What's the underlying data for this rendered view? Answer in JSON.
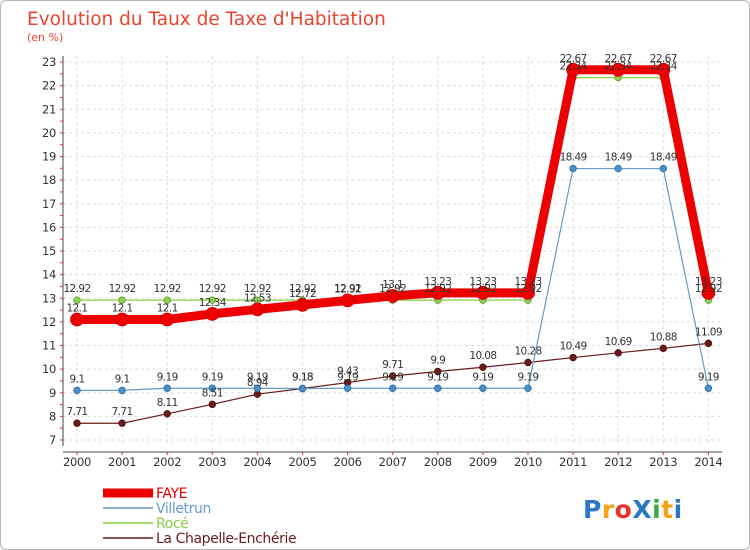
{
  "chart_data": {
    "type": "line",
    "title": "Evolution du Taux de Taxe d'Habitation",
    "subtitle": "(en %)",
    "xlabel": "",
    "ylabel": "(en %)",
    "ylim": [
      7,
      23
    ],
    "yticks": [
      "7",
      "8",
      "9",
      "10",
      "11",
      "12",
      "13",
      "14",
      "15",
      "16",
      "17",
      "18",
      "19",
      "20",
      "21",
      "22",
      "23"
    ],
    "categories": [
      "2000",
      "2001",
      "2002",
      "2003",
      "2004",
      "2005",
      "2006",
      "2007",
      "2008",
      "2009",
      "2010",
      "2011",
      "2012",
      "2013",
      "2014"
    ],
    "series": [
      {
        "name": "FAYE",
        "color": "#ee0000",
        "values": [
          12.1,
          12.1,
          12.1,
          12.34,
          12.53,
          12.72,
          12.91,
          13.1,
          13.23,
          13.23,
          13.23,
          22.67,
          22.67,
          22.67,
          13.23
        ],
        "labels": [
          "12.1",
          "12.1",
          "12.1",
          "12.34",
          "12.53",
          "12.72",
          "12.91",
          "13.1",
          "13.23",
          "13.23",
          "13.23",
          "22.67",
          "22.67",
          "22.67",
          "13.23"
        ]
      },
      {
        "name": "Villetrun",
        "color": "#6699cc",
        "values": [
          9.1,
          9.1,
          9.19,
          9.19,
          9.19,
          9.18,
          9.19,
          9.19,
          9.19,
          9.19,
          9.19,
          18.49,
          18.49,
          18.49,
          9.19
        ],
        "labels": [
          "9.1",
          "9.1",
          "9.19",
          "9.19",
          "9.19",
          "9.18",
          "9.19",
          "9.19",
          "9.19",
          "9.19",
          "9.19",
          "18.49",
          "18.49",
          "18.49",
          "9.19"
        ]
      },
      {
        "name": "Rocé",
        "color": "#88cc44",
        "values": [
          12.92,
          12.92,
          12.92,
          12.92,
          12.92,
          12.92,
          12.92,
          12.92,
          12.92,
          12.92,
          12.92,
          22.34,
          22.34,
          22.34,
          12.92
        ],
        "labels": [
          "12.92",
          "12.92",
          "12.92",
          "12.92",
          "12.92",
          "12.92",
          "12.92",
          "12.92",
          "12.92",
          "12.92",
          "12.92",
          "22.34",
          "22.34",
          "22.34",
          "12.92"
        ]
      },
      {
        "name": "La Chapelle-Enchérie",
        "color": "#6b1a1a",
        "values": [
          7.71,
          7.71,
          8.11,
          8.51,
          8.94,
          9.18,
          9.43,
          9.71,
          9.9,
          10.08,
          10.28,
          10.49,
          10.69,
          10.88,
          11.09
        ],
        "labels": [
          "7.71",
          "7.71",
          "8.11",
          "8.51",
          "8.94",
          "9.18",
          "9.43",
          "9.71",
          "9.9",
          "10.08",
          "10.28",
          "10.49",
          "10.69",
          "10.88",
          "11.09"
        ]
      }
    ],
    "legend": {
      "placement": "bottom-left",
      "items": [
        "FAYE",
        "Villetrun",
        "Rocé",
        "La Chapelle-Enchérie"
      ]
    }
  },
  "branding": {
    "logo_text": "ProXiti",
    "colors": [
      "#2b78c6",
      "#f7a21b",
      "#e8322b",
      "#2b78c6",
      "#39a845",
      "#f7a21b",
      "#2b78c6"
    ]
  }
}
